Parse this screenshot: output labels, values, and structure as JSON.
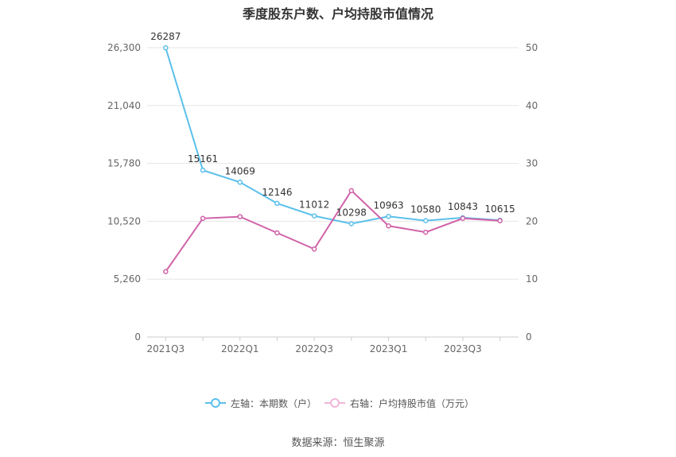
{
  "chart_data": {
    "type": "line",
    "title": "季度股东户数、户均持股市值情况",
    "categories": [
      "2021Q3",
      "2021Q4",
      "2022Q1",
      "2022Q2",
      "2022Q3",
      "2022Q4",
      "2023Q1",
      "2023Q2",
      "2023Q3",
      "2023Q4"
    ],
    "x_tick_labels": [
      "2021Q3",
      "2022Q1",
      "2022Q3",
      "2023Q1",
      "2023Q3"
    ],
    "left_axis": {
      "ticks": [
        "0",
        "5,260",
        "10,520",
        "15,780",
        "21,040",
        "26,300"
      ],
      "ylim": [
        0,
        26300
      ]
    },
    "right_axis": {
      "ticks": [
        "0",
        "10",
        "20",
        "30",
        "40",
        "50"
      ],
      "ylim": [
        0,
        50
      ]
    },
    "series": [
      {
        "name": "左轴：本期数（户）",
        "axis": "left",
        "color": "#5bc0eb",
        "values": [
          26287,
          15161,
          14069,
          12146,
          11012,
          10298,
          10963,
          10580,
          10843,
          10615
        ],
        "labels": [
          "26287",
          "15161",
          "14069",
          "12146",
          "11012",
          "10298",
          "10963",
          "10580",
          "10843",
          "10615"
        ]
      },
      {
        "name": "右轴：户均持股市值（万元）",
        "axis": "right",
        "color": "#d062a8",
        "values": [
          11.3,
          20.5,
          20.8,
          18.0,
          15.2,
          25.3,
          19.2,
          18.1,
          20.5,
          20.1
        ]
      }
    ],
    "grid": true,
    "legend_position": "bottom-center"
  },
  "source_note": "数据来源：恒生聚源"
}
